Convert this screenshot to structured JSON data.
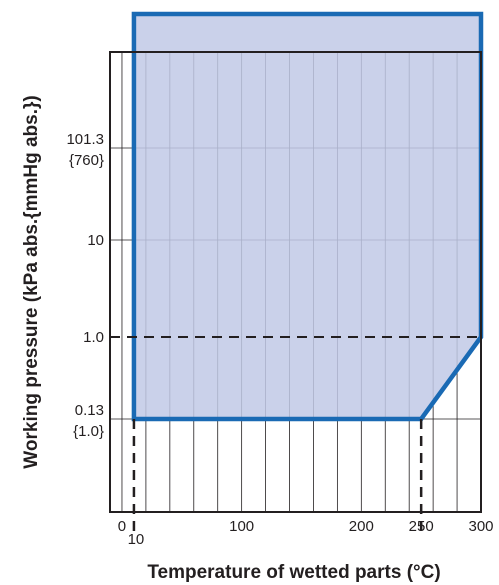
{
  "chart_data": {
    "type": "area",
    "title": "",
    "xlabel": "Temperature of wetted parts (°C)",
    "ylabel": "Working pressure (kPa abs.{mmHg abs.})",
    "xlim": [
      -10,
      300
    ],
    "x_scale": "linear",
    "y_scale": "log",
    "grid": true,
    "x_ticks": [
      {
        "value": 0,
        "label": "0"
      },
      {
        "value": 10,
        "label": "10"
      },
      {
        "value": 100,
        "label": "100"
      },
      {
        "value": 200,
        "label": "200"
      },
      {
        "value": 250,
        "label": "250"
      },
      {
        "value": 300,
        "label": "300"
      }
    ],
    "y_ticks": [
      {
        "value": 0.13,
        "label": "0.13",
        "sublabel": "{1.0}"
      },
      {
        "value": 1.0,
        "label": "1.0",
        "sublabel": ""
      },
      {
        "value": 10,
        "label": "10",
        "sublabel": ""
      },
      {
        "value": 101.3,
        "label": "101.3",
        "sublabel": "{760}"
      }
    ],
    "series": [
      {
        "region": [
          {
            "x": 10,
            "y": 0.13
          },
          {
            "x": 250,
            "y": 0.13
          },
          {
            "x": 300,
            "y": 1.0
          },
          {
            "x": 300,
            "y": "above-axis"
          },
          {
            "x": 10,
            "y": "above-axis"
          }
        ],
        "fill_color": "#c1c9e6",
        "line_color": "#1a6ab4"
      }
    ],
    "reference_lines": [
      {
        "axis": "y",
        "value": 1.0,
        "style": "dashed"
      },
      {
        "axis": "x",
        "value": 10,
        "style": "dashed",
        "from": 0.13
      },
      {
        "axis": "x",
        "value": 250,
        "style": "dashed",
        "from": 0.13
      }
    ]
  }
}
